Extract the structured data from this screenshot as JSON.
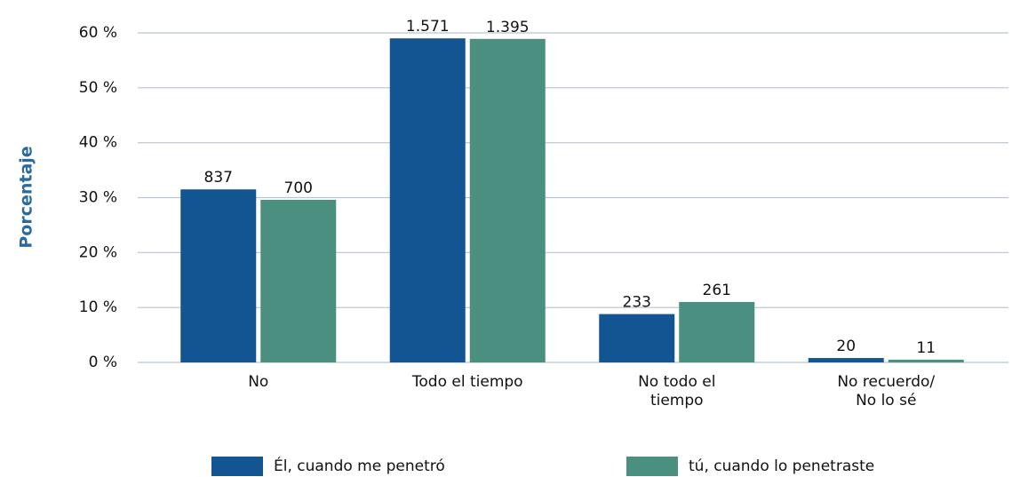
{
  "chart_data": {
    "type": "bar",
    "y_label": "Porcentaje",
    "categories": [
      "No",
      "Todo el tiempo",
      "No todo el\ntiempo",
      "No recuerdo/\nNo lo sé"
    ],
    "series": [
      {
        "name": "Él, cuando me penetró",
        "color": "#135592",
        "values": [
          31.5,
          59.0,
          8.8,
          0.8
        ],
        "count_labels": [
          "837",
          "1.571",
          "233",
          "20"
        ]
      },
      {
        "name": "tú, cuando lo penetraste",
        "color": "#4a8f80",
        "values": [
          29.6,
          58.9,
          11.0,
          0.5
        ],
        "count_labels": [
          "700",
          "1.395",
          "261",
          "11"
        ]
      }
    ],
    "ylim": [
      0,
      60
    ],
    "yticks": [
      {
        "value": 0,
        "label": "0 %"
      },
      {
        "value": 10,
        "label": "10 %"
      },
      {
        "value": 20,
        "label": "20 %"
      },
      {
        "value": 30,
        "label": "30 %"
      },
      {
        "value": 40,
        "label": "40 %"
      },
      {
        "value": 50,
        "label": "50 %"
      },
      {
        "value": 60,
        "label": "60 %"
      }
    ],
    "grid": true
  }
}
